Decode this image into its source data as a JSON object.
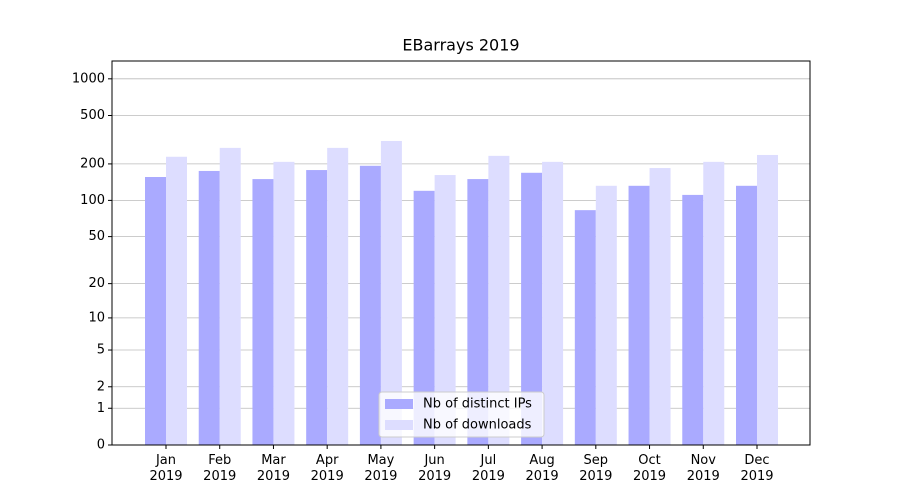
{
  "chart_data": {
    "type": "bar",
    "title": "EBarrays 2019",
    "categories": [
      "Jan\n2019",
      "Feb\n2019",
      "Mar\n2019",
      "Apr\n2019",
      "May\n2019",
      "Jun\n2019",
      "Jul\n2019",
      "Aug\n2019",
      "Sep\n2019",
      "Oct\n2019",
      "Nov\n2019",
      "Dec\n2019"
    ],
    "series": [
      {
        "name": "Nb of distinct IPs",
        "color": "#aaaaff",
        "values": [
          156,
          175,
          150,
          178,
          193,
          120,
          150,
          169,
          83,
          132,
          111,
          132
        ]
      },
      {
        "name": "Nb of downloads",
        "color": "#ddddff",
        "values": [
          229,
          271,
          208,
          271,
          309,
          162,
          233,
          208,
          132,
          185,
          208,
          237
        ]
      }
    ],
    "yscale": "log1p",
    "ylim": [
      0,
      1400
    ],
    "yticks": [
      0,
      1,
      2,
      5,
      10,
      20,
      50,
      100,
      200,
      500,
      1000
    ],
    "grid": true,
    "legend": "lower center"
  }
}
